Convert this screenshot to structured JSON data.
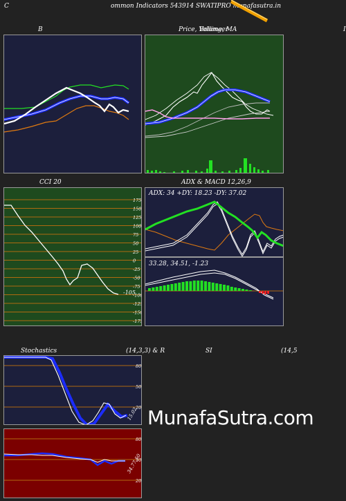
{
  "header": {
    "prefix": "C",
    "title": "ommon  Indicators 543914  SWATIPRO munafasutra.in"
  },
  "panels": {
    "bollinger": {
      "label": "B"
    },
    "price": {
      "label": "Price,  Volume,  MA",
      "overlay_label": "Bollinger"
    },
    "right_edge": {
      "label": "I"
    },
    "cci": {
      "label": "CCI 20",
      "value_label": "-105",
      "ticks": [
        "175",
        "150",
        "125",
        "100",
        "75",
        "50",
        "25",
        "0",
        "-25",
        "-50",
        "-75",
        "-100",
        "-125",
        "-150",
        "-175"
      ]
    },
    "adx": {
      "label": "ADX  & MACD 12,26,9",
      "readout": "ADX: 34   +DY: 18.23 -DY: 37.02"
    },
    "macd": {
      "readout": "33.28,  34.51,  -1.23"
    },
    "stochastics": {
      "label_left": "Stochastics",
      "label_right": "(14,3,3) & R",
      "value_label": "15.02",
      "ticks": [
        "80",
        "50",
        "20"
      ]
    },
    "rsi": {
      "label_left": "SI",
      "label_right": "(14,5",
      "value_label": "34.77,50",
      "ticks": [
        "80",
        "50",
        "20"
      ]
    }
  },
  "watermark": "MunafaSutra.com",
  "colors": {
    "navy": "#1c1f3c",
    "forest": "#1e4a1e",
    "darkred": "#7b0000",
    "grid": "#b06a10",
    "blue": "#1b2cff",
    "green": "#23e023",
    "orange": "#e07a10",
    "magenta": "#ff66dd",
    "red": "#ff2020"
  }
}
